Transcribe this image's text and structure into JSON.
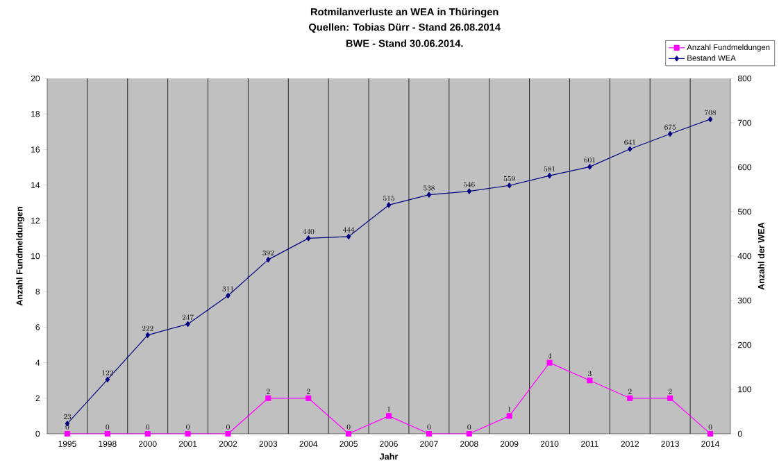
{
  "chart_data": {
    "type": "line",
    "title": "Rotmilanverluste an WEA in Thüringen",
    "subtitle": "Quellen: Tobias Dürr - Stand 26.08.2014",
    "annotations": [
      "BWE - Stand 30.06.2014."
    ],
    "xlabel": "Jahr",
    "ylabel": "Anzahl Fundmeldungen",
    "y2label": "Anzahl der WEA",
    "categories": [
      "1995",
      "1998",
      "2000",
      "2001",
      "2002",
      "2003",
      "2004",
      "2005",
      "2006",
      "2007",
      "2008",
      "2009",
      "2010",
      "2011",
      "2012",
      "2013",
      "2014"
    ],
    "series": [
      {
        "name": "Anzahl Fundmeldungen",
        "color": "#ff00ff",
        "marker": "square",
        "axis": "y",
        "values": [
          0,
          0,
          0,
          0,
          0,
          2,
          2,
          0,
          1,
          0,
          0,
          1,
          4,
          3,
          2,
          2,
          0
        ]
      },
      {
        "name": "Bestand WEA",
        "color": "#000080",
        "marker": "diamond",
        "axis": "y2",
        "values": [
          23,
          122,
          222,
          247,
          311,
          392,
          440,
          444,
          515,
          538,
          546,
          559,
          581,
          601,
          641,
          675,
          708
        ]
      }
    ],
    "ylim": [
      0,
      20
    ],
    "yticks": [
      0,
      2,
      4,
      6,
      8,
      10,
      12,
      14,
      16,
      18,
      20
    ],
    "y2lim": [
      0,
      800
    ],
    "y2ticks": [
      0,
      100,
      200,
      300,
      400,
      500,
      600,
      700,
      800
    ],
    "data_labels": true,
    "grid": "x",
    "legend": "top right",
    "line_style": "solid"
  }
}
